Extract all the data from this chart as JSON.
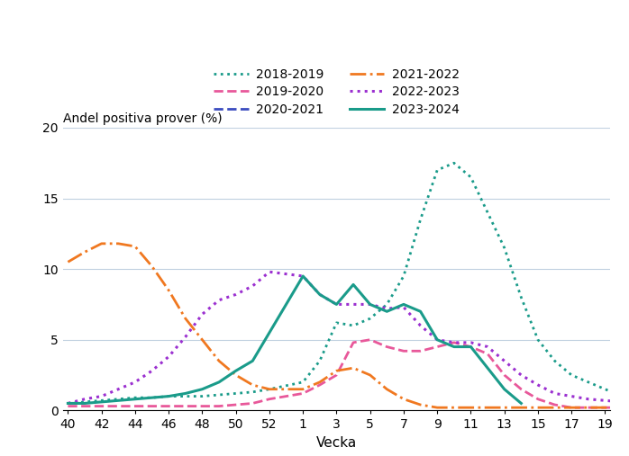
{
  "title": "",
  "ylabel": "Andel positiva prover (%)",
  "xlabel": "Vecka",
  "ylim": [
    0,
    20
  ],
  "yticks": [
    0,
    5,
    10,
    15,
    20
  ],
  "xtick_labels": [
    "40",
    "42",
    "44",
    "46",
    "48",
    "50",
    "52",
    "1",
    "3",
    "5",
    "7",
    "9",
    "11",
    "13",
    "15",
    "17",
    "19"
  ],
  "background_color": "#ffffff",
  "grid_color": "#c0d0e0",
  "series": [
    {
      "label": "2018-2019",
      "color": "#1a9b8a",
      "linestyle": "dotted",
      "linewidth": 2.0,
      "x": [
        40,
        41,
        42,
        43,
        44,
        45,
        46,
        47,
        48,
        49,
        50,
        51,
        52,
        1,
        2,
        3,
        4,
        5,
        6,
        7,
        8,
        9,
        10,
        11,
        12,
        13,
        14,
        15,
        16,
        17,
        18,
        19,
        20
      ],
      "y": [
        0.5,
        0.6,
        0.7,
        0.8,
        0.9,
        0.9,
        1.0,
        1.0,
        1.0,
        1.1,
        1.2,
        1.3,
        1.5,
        2.0,
        3.5,
        6.2,
        6.0,
        6.5,
        7.5,
        9.5,
        13.5,
        17.0,
        17.5,
        16.5,
        14.0,
        11.5,
        8.0,
        5.0,
        3.5,
        2.5,
        2.0,
        1.5,
        1.0
      ]
    },
    {
      "label": "2019-2020",
      "color": "#e8589a",
      "linestyle": "dashed",
      "linewidth": 2.0,
      "x": [
        40,
        41,
        42,
        43,
        44,
        45,
        46,
        47,
        48,
        49,
        50,
        51,
        52,
        1,
        2,
        3,
        4,
        5,
        6,
        7,
        8,
        9,
        10,
        11,
        12,
        13,
        14,
        15,
        16,
        17,
        18,
        19,
        20
      ],
      "y": [
        0.3,
        0.3,
        0.3,
        0.3,
        0.3,
        0.3,
        0.3,
        0.3,
        0.3,
        0.3,
        0.4,
        0.5,
        0.8,
        1.2,
        1.8,
        2.5,
        4.8,
        5.0,
        4.5,
        4.2,
        4.2,
        4.5,
        4.8,
        4.5,
        4.0,
        2.5,
        1.5,
        0.8,
        0.4,
        0.2,
        0.2,
        0.2,
        0.2
      ]
    },
    {
      "label": "2020-2021",
      "color": "#3b4cc0",
      "linestyle": "dashed",
      "linewidth": 2.0,
      "x": [
        40,
        41,
        42,
        43,
        44,
        45,
        46,
        47,
        48,
        49,
        50,
        51,
        52,
        1,
        2,
        3,
        4,
        5,
        6,
        7,
        8,
        9,
        10,
        11,
        12,
        13,
        14,
        15,
        16,
        17,
        18,
        19,
        20
      ],
      "y": [
        -0.1,
        -0.1,
        -0.1,
        -0.1,
        -0.1,
        -0.1,
        -0.1,
        -0.1,
        -0.1,
        -0.1,
        -0.1,
        -0.1,
        -0.1,
        -0.1,
        -0.1,
        -0.1,
        -0.1,
        -0.1,
        -0.1,
        -0.1,
        -0.1,
        -0.1,
        -0.1,
        -0.1,
        -0.1,
        -0.1,
        -0.1,
        -0.1,
        -0.1,
        -0.1,
        -0.1,
        -0.1,
        -0.1
      ]
    },
    {
      "label": "2021-2022",
      "color": "#f07820",
      "linestyle": "dashdot",
      "linewidth": 2.0,
      "x": [
        40,
        41,
        42,
        43,
        44,
        45,
        46,
        47,
        48,
        49,
        50,
        51,
        52,
        1,
        2,
        3,
        4,
        5,
        6,
        7,
        8,
        9,
        10,
        11,
        12,
        13,
        14,
        15,
        16,
        17,
        18,
        19,
        20
      ],
      "y": [
        10.5,
        11.2,
        11.8,
        11.8,
        11.6,
        10.2,
        8.5,
        6.5,
        5.0,
        3.5,
        2.5,
        1.8,
        1.5,
        1.5,
        2.0,
        2.8,
        3.0,
        2.5,
        1.5,
        0.8,
        0.4,
        0.2,
        0.2,
        0.2,
        0.2,
        0.2,
        0.2,
        0.2,
        0.2,
        0.2,
        0.2,
        0.2,
        0.2
      ]
    },
    {
      "label": "2022-2023",
      "color": "#9b30d0",
      "linestyle": "dotted",
      "linewidth": 2.2,
      "x": [
        40,
        41,
        42,
        43,
        44,
        45,
        46,
        47,
        48,
        49,
        50,
        51,
        52,
        1,
        2,
        3,
        4,
        5,
        6,
        7,
        8,
        9,
        10,
        11,
        12,
        13,
        14,
        15,
        16,
        17,
        18,
        19,
        20
      ],
      "y": [
        0.5,
        0.8,
        1.0,
        1.5,
        2.0,
        2.8,
        3.8,
        5.2,
        6.8,
        7.8,
        8.2,
        8.8,
        9.8,
        9.5,
        8.2,
        7.5,
        7.5,
        7.5,
        7.2,
        7.3,
        6.0,
        5.0,
        4.8,
        4.8,
        4.5,
        3.5,
        2.5,
        1.8,
        1.2,
        1.0,
        0.8,
        0.7,
        0.6
      ]
    },
    {
      "label": "2023-2024",
      "color": "#1a9b8a",
      "linestyle": "solid",
      "linewidth": 2.2,
      "x": [
        40,
        41,
        42,
        43,
        44,
        45,
        46,
        47,
        48,
        49,
        50,
        51,
        52,
        1,
        2,
        3,
        4,
        5,
        6,
        7,
        8,
        9,
        10,
        11,
        12,
        13,
        14
      ],
      "y": [
        0.5,
        0.5,
        0.6,
        0.7,
        0.8,
        0.9,
        1.0,
        1.2,
        1.5,
        2.0,
        2.8,
        3.5,
        5.5,
        9.5,
        8.2,
        7.5,
        8.9,
        7.5,
        7.0,
        7.5,
        7.0,
        5.0,
        4.5,
        4.5,
        3.0,
        1.5,
        0.5
      ]
    }
  ],
  "legend_col1": [
    "2018-2019",
    "2020-2021",
    "2022-2023"
  ],
  "legend_col2": [
    "2019-2020",
    "2021-2022",
    "2023-2024"
  ]
}
